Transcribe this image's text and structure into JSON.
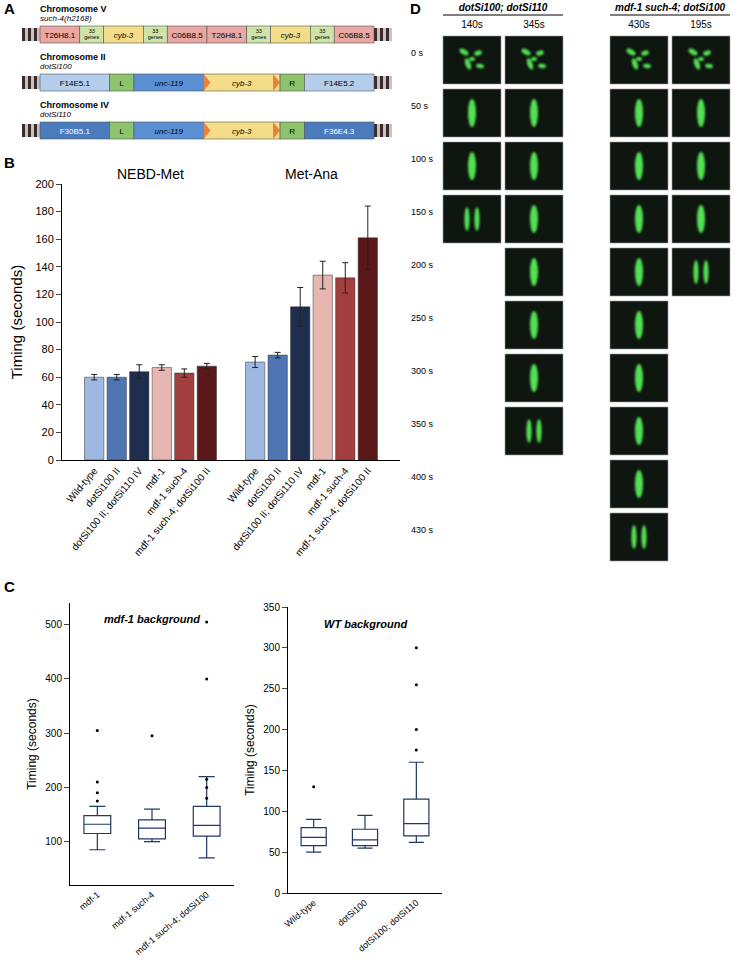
{
  "panel_labels": [
    "A",
    "B",
    "C",
    "D"
  ],
  "diagram": {
    "chromosomes": [
      {
        "name": "Chromosome V",
        "allele": "such-4(h2168)",
        "segments": [
          {
            "label": "T26H8.1",
            "kind": "gene",
            "color": "#e8a7a1"
          },
          {
            "label": "33 genes",
            "kind": "spacer",
            "color": "#cfe3a8"
          },
          {
            "label": "cyb-3",
            "kind": "gene",
            "color": "#f3dd8a"
          },
          {
            "label": "33 genes",
            "kind": "spacer",
            "color": "#cfe3a8"
          },
          {
            "label": "C06B8.5",
            "kind": "gene",
            "color": "#e8a7a1"
          },
          {
            "label": "T26H8.1",
            "kind": "gene",
            "color": "#e8a7a1"
          },
          {
            "label": "33 genes",
            "kind": "spacer",
            "color": "#cfe3a8"
          },
          {
            "label": "cyb-3",
            "kind": "gene",
            "color": "#f3dd8a"
          },
          {
            "label": "33 genes",
            "kind": "spacer",
            "color": "#cfe3a8"
          },
          {
            "label": "C06B8.5",
            "kind": "gene",
            "color": "#e8a7a1"
          }
        ]
      },
      {
        "name": "Chromosome II",
        "allele": "dotSi100",
        "segments": [
          {
            "label": "F14E5.1",
            "kind": "gene",
            "color": "#b3cdea"
          },
          {
            "label": "L",
            "kind": "marker",
            "color": "#8cc46c"
          },
          {
            "label": "unc-119",
            "kind": "gene",
            "color": "#5b8fd3"
          },
          {
            "label": "cyb-3",
            "kind": "insert",
            "color": "#f3dd8a"
          },
          {
            "label": "R",
            "kind": "marker",
            "color": "#8cc46c"
          },
          {
            "label": "F14E5.2",
            "kind": "gene",
            "color": "#b3cdea"
          }
        ]
      },
      {
        "name": "Chromosome IV",
        "allele": "dotSi110",
        "segments": [
          {
            "label": "F30B5.1",
            "kind": "gene",
            "color": "#4a7bbd"
          },
          {
            "label": "L",
            "kind": "marker",
            "color": "#8cc46c"
          },
          {
            "label": "unc-119",
            "kind": "gene",
            "color": "#5b8fd3"
          },
          {
            "label": "cyb-3",
            "kind": "insert",
            "color": "#f3dd8a"
          },
          {
            "label": "R",
            "kind": "marker",
            "color": "#8cc46c"
          },
          {
            "label": "F36E4.3",
            "kind": "gene",
            "color": "#4a7bbd"
          }
        ]
      }
    ]
  },
  "chart_data": [
    {
      "type": "bar",
      "categories": [
        "NEBD-Met",
        "Met-Ana"
      ],
      "series": [
        {
          "name": "Wild-type",
          "color": "#9db9e2",
          "values": [
            60,
            71
          ],
          "errors": [
            2,
            4
          ]
        },
        {
          "name": "dotSi100 II",
          "color": "#4f76b3",
          "values": [
            60,
            76
          ],
          "errors": [
            2,
            2
          ]
        },
        {
          "name": "dotSi100 II; dotSi110 IV",
          "color": "#1f2d4e",
          "values": [
            64,
            111
          ],
          "errors": [
            5,
            14
          ]
        },
        {
          "name": "mdf-1",
          "color": "#e8b6b1",
          "values": [
            67,
            134
          ],
          "errors": [
            2,
            10
          ]
        },
        {
          "name": "mdf-1 such-4",
          "color": "#a33e3e",
          "values": [
            63,
            132
          ],
          "errors": [
            3,
            11
          ]
        },
        {
          "name": "mdf-1 such-4; dotSi100 II",
          "color": "#5a1818",
          "values": [
            68,
            161
          ],
          "errors": [
            2,
            23
          ]
        }
      ],
      "ylabel": "Timing (seconds)",
      "ylim": [
        0,
        200
      ],
      "yticks": [
        0,
        20,
        40,
        60,
        80,
        100,
        120,
        140,
        160,
        180,
        200
      ],
      "grid": false
    },
    {
      "type": "box",
      "title": "mdf-1 background",
      "categories": [
        "mdf-1",
        "mdf-1 such-4",
        "mdf-1 such-4; dotSi100"
      ],
      "q1": [
        115,
        105,
        110
      ],
      "median": [
        132,
        125,
        130
      ],
      "q3": [
        148,
        140,
        165
      ],
      "lowerfence": [
        85,
        100,
        70
      ],
      "upperfence": [
        165,
        160,
        220
      ],
      "points": [
        [
          175,
          190,
          210,
          305
        ],
        [
          295
        ],
        [
          180,
          200,
          215,
          400,
          505
        ]
      ],
      "color": "#1f3864",
      "ylabel": "Timing (seconds)",
      "ylim": [
        20,
        540
      ],
      "yticks": [
        100,
        200,
        300,
        400,
        500
      ],
      "grid": false
    },
    {
      "type": "box",
      "title": "WT background",
      "categories": [
        "Wild-type",
        "dotSi100",
        "dotSi100; dotSi110"
      ],
      "q1": [
        58,
        58,
        70
      ],
      "median": [
        68,
        65,
        85
      ],
      "q3": [
        80,
        78,
        115
      ],
      "lowerfence": [
        50,
        55,
        62
      ],
      "upperfence": [
        90,
        95,
        160
      ],
      "points": [
        [
          130
        ],
        [],
        [
          175,
          200,
          255,
          300
        ]
      ],
      "color": "#1f3864",
      "ylabel": "Timing (seconds)",
      "ylim": [
        0,
        350
      ],
      "yticks": [
        0,
        50,
        100,
        150,
        200,
        250,
        300,
        350
      ],
      "grid": false
    }
  ],
  "images": {
    "groups": [
      {
        "title": "dotSi100; dotSi110",
        "movies": [
          {
            "label": "140s",
            "frames": 4
          },
          {
            "label": "345s",
            "frames": 8
          }
        ]
      },
      {
        "title": "mdf-1 such-4; dotSi100",
        "movies": [
          {
            "label": "430s",
            "frames": 10
          },
          {
            "label": "195s",
            "frames": 5
          }
        ]
      }
    ],
    "times": [
      "0 s",
      "50 s",
      "100 s",
      "150 s",
      "200 s",
      "250 s",
      "300 s",
      "350 s",
      "400 s",
      "430 s"
    ]
  }
}
